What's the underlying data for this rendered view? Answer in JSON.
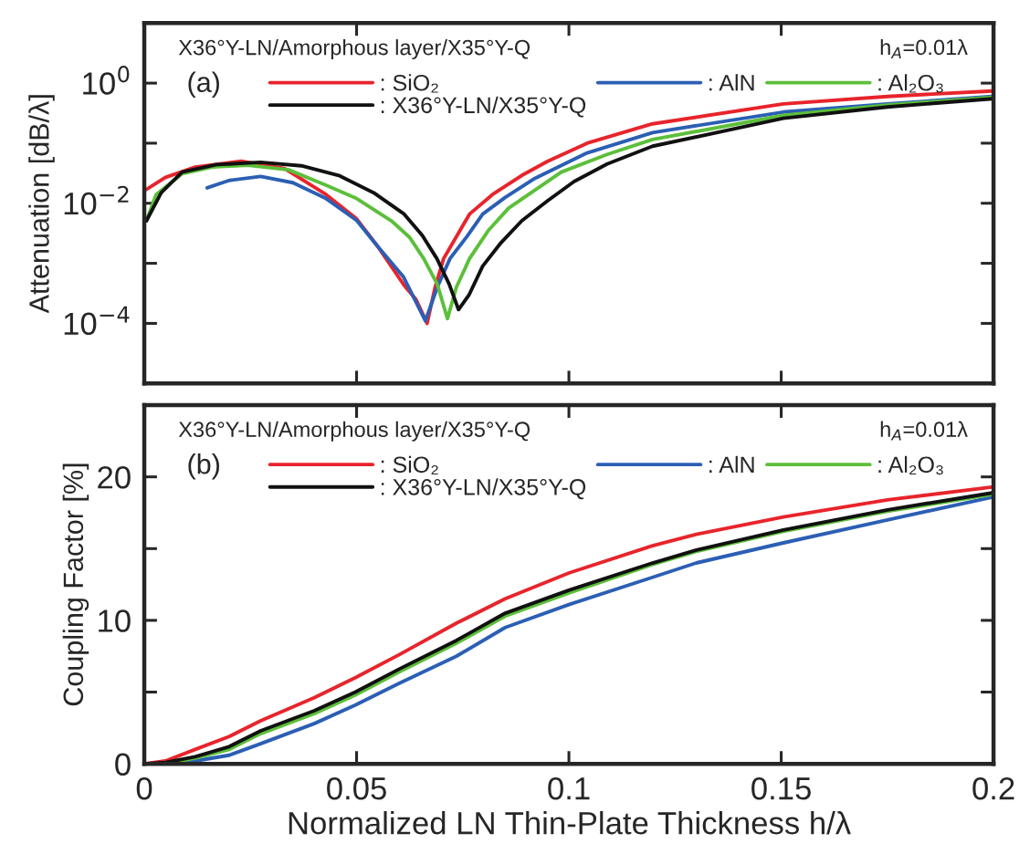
{
  "chart_data": [
    {
      "type": "line",
      "ylabel": "Attenuation [dB/λ]",
      "log": "y",
      "xlim": [
        0,
        0.2
      ],
      "xticks": [
        0,
        0.05,
        0.1,
        0.15,
        0.2
      ],
      "ylim": [
        1e-05,
        10
      ],
      "yticks": [
        {
          "value": 0.0001,
          "label": "10$^{−4}$"
        },
        {
          "value": 0.001,
          "label": null
        },
        {
          "value": 0.01,
          "label": "10$^{−2}$"
        },
        {
          "value": 0.1,
          "label": null
        },
        {
          "value": 1,
          "label": "10$^{0}$"
        }
      ],
      "tick_labels": "y",
      "grid": false,
      "legend": "top",
      "marker": "none",
      "line_style": "solid",
      "annotations": [
        "X36°Y-LN/Amorphous layer/X35°Y-Q",
        "(a)",
        "h$_{A}$=0.01λ"
      ],
      "series": [
        {
          "name": ": SiO₂",
          "color": "#e8242b",
          "x": [
            0.0005,
            0.005,
            0.012,
            0.0228,
            0.033,
            0.0428,
            0.05,
            0.055,
            0.0612,
            0.064,
            0.0666,
            0.0685,
            0.0705,
            0.0766,
            0.082,
            0.0889,
            0.095,
            0.1043,
            0.1197,
            0.1505,
            0.175,
            0.1997
          ],
          "values": [
            0.017,
            0.027,
            0.04,
            0.05,
            0.038,
            0.014,
            0.0055,
            0.0019,
            0.00043,
            0.00025,
            0.0001,
            0.0004,
            0.0012,
            0.0066,
            0.014,
            0.029,
            0.05,
            0.1,
            0.21,
            0.45,
            0.6,
            0.74
          ]
        },
        {
          "name": ": AlN",
          "color": "#2b5fb4",
          "x": [
            0.0148,
            0.02,
            0.0274,
            0.035,
            0.0428,
            0.05,
            0.055,
            0.061,
            0.0662,
            0.069,
            0.072,
            0.076,
            0.0797,
            0.085,
            0.092,
            0.1043,
            0.1197,
            0.1505,
            0.175,
            0.1997
          ],
          "values": [
            0.018,
            0.024,
            0.028,
            0.022,
            0.012,
            0.0052,
            0.0019,
            0.0006,
            0.00011,
            0.0004,
            0.0012,
            0.0028,
            0.0066,
            0.0125,
            0.026,
            0.069,
            0.15,
            0.33,
            0.45,
            0.6
          ]
        },
        {
          "name": ": Al₂O₃",
          "color": "#5cbf3a",
          "x": [
            0.0005,
            0.0028,
            0.0089,
            0.016,
            0.0243,
            0.034,
            0.0428,
            0.05,
            0.0582,
            0.0625,
            0.0658,
            0.069,
            0.0714,
            0.0735,
            0.0766,
            0.081,
            0.0858,
            0.0982,
            0.109,
            0.1197,
            0.1505,
            0.175,
            0.1997
          ],
          "values": [
            0.0051,
            0.014,
            0.031,
            0.04,
            0.043,
            0.036,
            0.02,
            0.012,
            0.0051,
            0.0027,
            0.0012,
            0.00045,
            0.00012,
            0.0004,
            0.0012,
            0.0035,
            0.0083,
            0.033,
            0.065,
            0.115,
            0.29,
            0.43,
            0.58
          ]
        },
        {
          "name": ": X36°Y-LN/X35°Y-Q",
          "color": "#111111",
          "x": [
            0.0005,
            0.004,
            0.0089,
            0.017,
            0.0274,
            0.037,
            0.0458,
            0.054,
            0.0612,
            0.0655,
            0.0689,
            0.0718,
            0.074,
            0.0765,
            0.0797,
            0.084,
            0.0889,
            0.095,
            0.1012,
            0.109,
            0.1197,
            0.1505,
            0.175,
            0.1997
          ],
          "values": [
            0.0051,
            0.015,
            0.033,
            0.044,
            0.048,
            0.042,
            0.029,
            0.015,
            0.0066,
            0.0029,
            0.0012,
            0.00045,
            0.00017,
            0.0003,
            0.0009,
            0.0022,
            0.0051,
            0.011,
            0.023,
            0.045,
            0.089,
            0.26,
            0.4,
            0.55
          ]
        }
      ]
    },
    {
      "type": "line",
      "xlabel": "Normalized LN Thin-Plate Thickness h/λ",
      "ylabel": "Coupling Factor [%]",
      "xlim": [
        0,
        0.2
      ],
      "xticks": [
        0,
        0.05,
        0.1,
        0.15,
        0.2
      ],
      "ylim": [
        0,
        25
      ],
      "yticks": [
        0,
        {
          "value": 5,
          "label": null
        },
        10,
        {
          "value": 15,
          "label": null
        },
        20
      ],
      "grid": false,
      "legend": "top",
      "marker": "none",
      "line_style": "solid",
      "annotations": [
        "X36°Y-LN/Amorphous layer/X35°Y-Q",
        "(b)",
        "h$_{A}$=0.01λ"
      ],
      "series": [
        {
          "name": ": SiO₂",
          "color": "#e8242b",
          "x": [
            0,
            0.005,
            0.012,
            0.02,
            0.0274,
            0.04,
            0.0497,
            0.06,
            0.0735,
            0.085,
            0.1,
            0.1197,
            0.13,
            0.1505,
            0.175,
            0.2
          ],
          "values": [
            0,
            0.2,
            1.0,
            1.9,
            3.0,
            4.6,
            6.0,
            7.6,
            9.8,
            11.5,
            13.3,
            15.2,
            16.0,
            17.2,
            18.4,
            19.3
          ]
        },
        {
          "name": ": AlN",
          "color": "#2b5fb4",
          "x": [
            0,
            0.005,
            0.012,
            0.02,
            0.0274,
            0.04,
            0.0497,
            0.06,
            0.0735,
            0.085,
            0.1,
            0.1197,
            0.13,
            0.1505,
            0.175,
            0.2
          ],
          "values": [
            0,
            0.0,
            0.2,
            0.6,
            1.4,
            2.8,
            4.1,
            5.6,
            7.5,
            9.5,
            11.1,
            13.0,
            14.0,
            15.4,
            17.0,
            18.6
          ]
        },
        {
          "name": ": Al₂O₃",
          "color": "#5cbf3a",
          "x": [
            0,
            0.005,
            0.012,
            0.02,
            0.0274,
            0.04,
            0.0497,
            0.06,
            0.0735,
            0.085,
            0.1,
            0.1197,
            0.13,
            0.1505,
            0.175,
            0.2
          ],
          "values": [
            0,
            0.0,
            0.4,
            1.0,
            2.1,
            3.5,
            4.8,
            6.4,
            8.4,
            10.3,
            11.9,
            13.9,
            14.8,
            16.2,
            17.6,
            18.8
          ]
        },
        {
          "name": ": X36°Y-LN/X35°Y-Q",
          "color": "#111111",
          "x": [
            0,
            0.005,
            0.012,
            0.02,
            0.0274,
            0.04,
            0.0497,
            0.06,
            0.0735,
            0.085,
            0.1,
            0.1197,
            0.13,
            0.1505,
            0.175,
            0.2
          ],
          "values": [
            0,
            0.1,
            0.5,
            1.2,
            2.3,
            3.7,
            5.0,
            6.6,
            8.6,
            10.5,
            12.1,
            14.0,
            14.9,
            16.3,
            17.7,
            18.9
          ]
        }
      ]
    }
  ]
}
